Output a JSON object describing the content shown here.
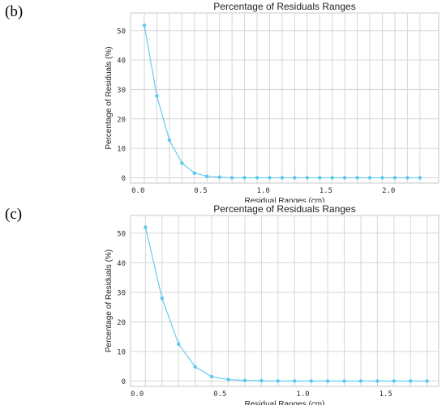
{
  "panels": [
    {
      "label": "(b)",
      "chart_data": {
        "type": "line",
        "title": "Percentage of Residuals Ranges",
        "xlabel": "Residual Ranges (cm)",
        "ylabel": "Percentage of Residuals (%)",
        "xlim": [
          -0.06,
          2.4
        ],
        "ylim": [
          -1.8,
          56
        ],
        "xticks": [
          "0.0",
          "0.5",
          "1.0",
          "1.5",
          "2.0"
        ],
        "yticks": [
          "0",
          "10",
          "20",
          "30",
          "40",
          "50"
        ],
        "grid": true,
        "color": "#5bc8ef",
        "series": [
          {
            "x": [
              0.05,
              0.15,
              0.25,
              0.35,
              0.45,
              0.55,
              0.65,
              0.75,
              0.85,
              0.95,
              1.05,
              1.15,
              1.25,
              1.35,
              1.45,
              1.55,
              1.65,
              1.75,
              1.85,
              1.95,
              2.05,
              2.15,
              2.25
            ],
            "y": [
              51.8,
              27.8,
              12.8,
              5.0,
              1.6,
              0.5,
              0.2,
              0,
              0,
              0,
              0,
              0,
              0,
              0,
              0,
              0,
              0,
              0,
              0,
              0,
              0,
              0,
              0
            ]
          }
        ]
      }
    },
    {
      "label": "(c)",
      "chart_data": {
        "type": "line",
        "title": "Percentage of Residuals Ranges",
        "xlabel": "Residual Ranges (cm)",
        "ylabel": "Percentage of Residuals (%)",
        "xlim": [
          -0.04,
          1.82
        ],
        "ylim": [
          -1.8,
          56
        ],
        "xticks": [
          "0.0",
          "0.5",
          "1.0",
          "1.5"
        ],
        "yticks": [
          "0",
          "10",
          "20",
          "30",
          "40",
          "50"
        ],
        "grid": true,
        "color": "#5bc8ef",
        "series": [
          {
            "x": [
              0.05,
              0.15,
              0.25,
              0.35,
              0.45,
              0.55,
              0.65,
              0.75,
              0.85,
              0.95,
              1.05,
              1.15,
              1.25,
              1.35,
              1.45,
              1.55,
              1.65,
              1.75
            ],
            "y": [
              52.0,
              28.0,
              12.5,
              4.8,
              1.5,
              0.5,
              0.2,
              0.1,
              0,
              0,
              0,
              0,
              0,
              0,
              0,
              0,
              0,
              0
            ]
          }
        ]
      }
    }
  ]
}
